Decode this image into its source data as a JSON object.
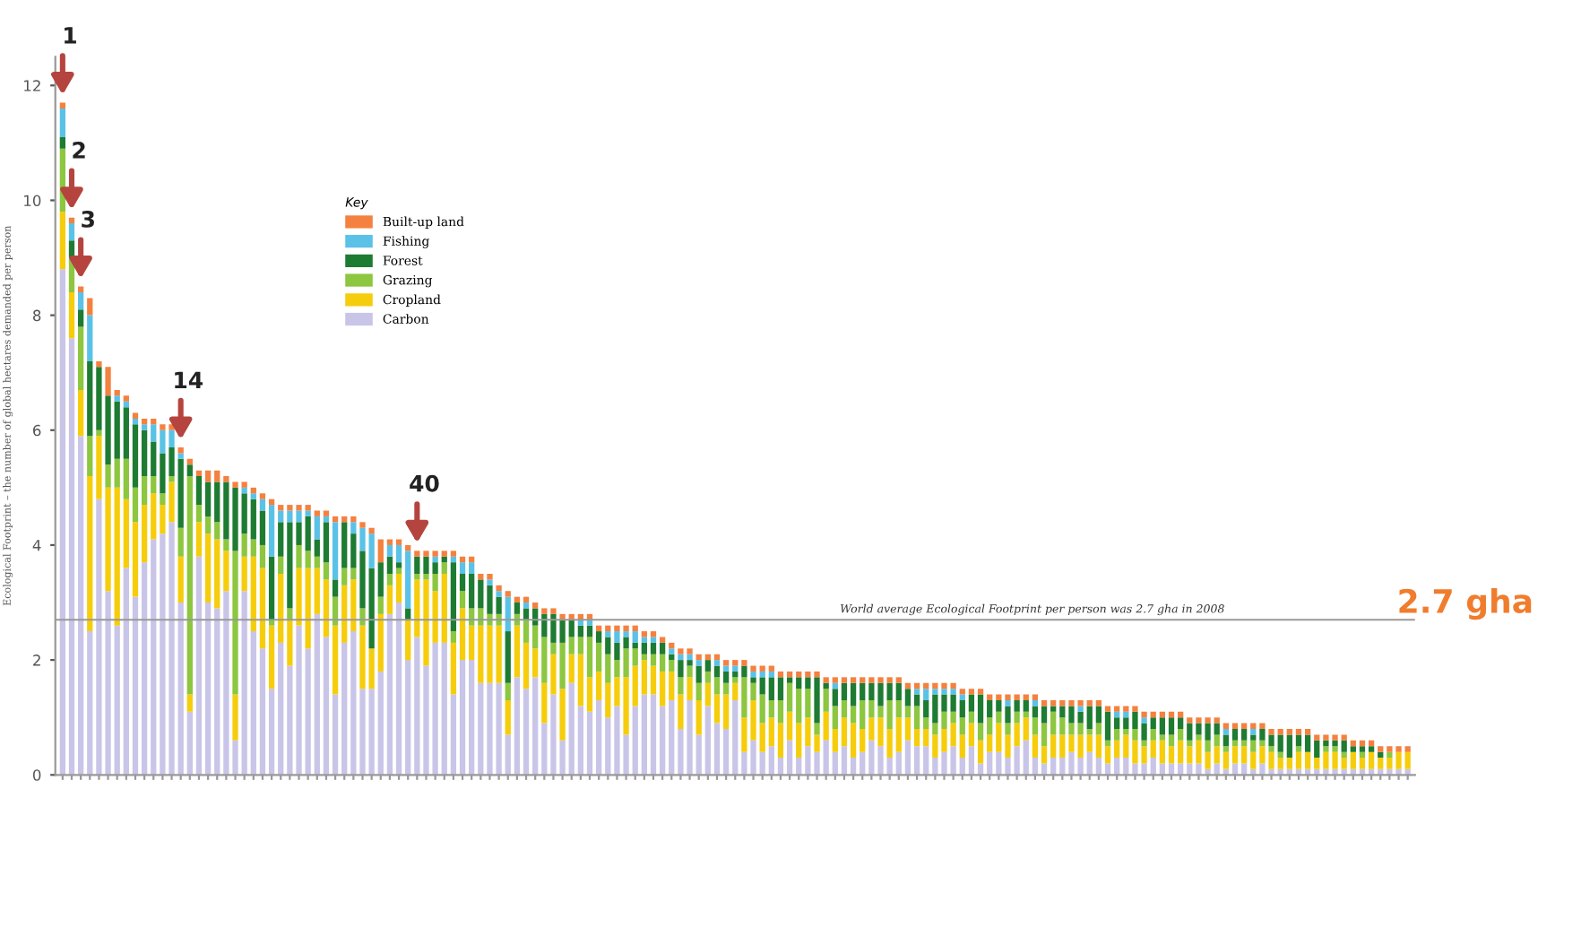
{
  "chart_data": {
    "type": "bar",
    "stacked": true,
    "ylabel": "Ecological Footprint – the number of global hectares demanded per person",
    "legend_title": "Key",
    "legend": "top left",
    "grid": false,
    "ylim": [
      0,
      12.5
    ],
    "yticks": [
      0,
      2,
      4,
      6,
      8,
      10,
      12
    ],
    "categories": [
      null,
      null,
      null,
      null,
      null,
      null,
      null,
      null,
      null,
      null,
      null,
      null,
      null,
      null,
      null,
      null,
      null,
      null,
      null,
      null,
      null,
      null,
      null,
      null,
      null,
      null,
      null,
      null,
      null,
      null,
      null,
      null,
      null,
      null,
      null,
      null,
      null,
      null,
      null,
      null,
      null,
      null,
      null,
      null,
      null,
      null,
      null,
      null,
      null,
      null,
      null,
      null,
      null,
      null,
      null,
      null,
      null,
      null,
      null,
      null,
      null,
      null,
      null,
      null,
      null,
      null,
      null,
      null,
      null,
      null,
      null,
      null,
      null,
      null,
      null,
      null,
      null,
      null,
      null,
      null,
      null,
      null,
      null,
      null,
      null,
      null,
      null,
      null,
      null,
      null,
      null,
      null,
      null,
      null,
      null,
      null,
      null,
      null,
      null,
      null,
      null,
      null,
      null,
      null,
      null,
      null,
      null,
      null,
      null,
      null,
      null,
      null,
      null,
      null,
      null,
      null,
      null,
      null,
      null,
      null,
      null,
      null,
      null,
      null,
      null,
      null,
      null,
      null,
      null,
      null,
      null,
      null,
      null,
      null,
      null,
      null,
      null,
      null,
      null,
      null,
      null,
      null,
      null,
      null,
      null,
      null,
      null,
      null,
      null
    ],
    "series": [
      {
        "name": "Carbon",
        "color": "#c9c5e8",
        "values": [
          8.8,
          7.6,
          5.9,
          2.5,
          4.8,
          3.2,
          2.6,
          3.6,
          3.1,
          3.7,
          4.1,
          4.2,
          4.4,
          3.0,
          1.1,
          3.8,
          3.0,
          2.9,
          3.2,
          0.6,
          3.2,
          2.5,
          2.2,
          1.5,
          2.3,
          1.9,
          2.6,
          2.2,
          2.8,
          2.4,
          1.4,
          2.3,
          2.5,
          1.5,
          1.5,
          1.8,
          2.8,
          3.0,
          2.0,
          2.4,
          1.9,
          2.3,
          2.3,
          1.4,
          2.0,
          2.0,
          1.6,
          1.6,
          1.6,
          0.7,
          1.7,
          1.5,
          1.7,
          0.9,
          1.4,
          0.6,
          1.6,
          1.2,
          1.1,
          1.3,
          1.0,
          1.2,
          0.7,
          1.2,
          1.4,
          1.4,
          1.2,
          1.3,
          0.8,
          1.3,
          0.7,
          1.2,
          0.9,
          0.8,
          1.3,
          0.4,
          0.6,
          0.4,
          0.5,
          0.3,
          0.6,
          0.3,
          0.5,
          0.4,
          0.6,
          0.4,
          0.5,
          0.3,
          0.4,
          0.6,
          0.5,
          0.3,
          0.4,
          0.6,
          0.5,
          0.5,
          0.3,
          0.4,
          0.5,
          0.3,
          0.5,
          0.2,
          0.4,
          0.4,
          0.3,
          0.5,
          0.6,
          0.3,
          0.2,
          0.3,
          0.3,
          0.4,
          0.3,
          0.4,
          0.3,
          0.2,
          0.3,
          0.3,
          0.2,
          0.2,
          0.3,
          0.2,
          0.2,
          0.2,
          0.2,
          0.2,
          0.1,
          0.2,
          0.1,
          0.2,
          0.2,
          0.1,
          0.2,
          0.1,
          0.1,
          0.1,
          0.1,
          0.1,
          0.1,
          0.1,
          0.1,
          0.1,
          0.1,
          0.1,
          0.1,
          0.1,
          0.1,
          0.1,
          0.1
        ]
      },
      {
        "name": "Cropland",
        "color": "#f6cd0c",
        "values": [
          1.0,
          0.8,
          0.8,
          2.7,
          1.1,
          1.8,
          2.4,
          1.2,
          1.3,
          1.0,
          0.8,
          0.5,
          0.7,
          0.8,
          0.3,
          0.6,
          1.2,
          1.2,
          0.7,
          0.8,
          0.6,
          1.3,
          1.4,
          1.1,
          1.2,
          0.8,
          1.0,
          1.4,
          0.8,
          1.0,
          1.2,
          1.0,
          0.9,
          1.1,
          0.7,
          1.0,
          0.5,
          0.5,
          0.7,
          1.0,
          1.5,
          0.9,
          1.2,
          0.9,
          0.9,
          0.6,
          1.0,
          1.0,
          1.0,
          0.6,
          0.9,
          0.8,
          0.5,
          0.7,
          0.7,
          0.9,
          0.5,
          0.9,
          0.6,
          0.5,
          0.6,
          0.5,
          1.0,
          0.7,
          0.6,
          0.5,
          0.6,
          0.5,
          0.6,
          0.4,
          0.6,
          0.4,
          0.5,
          0.6,
          0.3,
          0.6,
          0.7,
          0.5,
          0.5,
          0.6,
          0.5,
          0.6,
          0.5,
          0.3,
          0.5,
          0.4,
          0.5,
          0.6,
          0.4,
          0.4,
          0.5,
          0.5,
          0.6,
          0.4,
          0.3,
          0.3,
          0.4,
          0.4,
          0.4,
          0.4,
          0.4,
          0.4,
          0.3,
          0.5,
          0.4,
          0.4,
          0.4,
          0.4,
          0.3,
          0.4,
          0.4,
          0.3,
          0.4,
          0.3,
          0.4,
          0.3,
          0.3,
          0.4,
          0.4,
          0.3,
          0.3,
          0.4,
          0.3,
          0.4,
          0.3,
          0.4,
          0.3,
          0.3,
          0.3,
          0.3,
          0.3,
          0.3,
          0.3,
          0.3,
          0.2,
          0.2,
          0.3,
          0.3,
          0.2,
          0.3,
          0.3,
          0.2,
          0.3,
          0.2,
          0.3,
          0.2,
          0.2,
          0.3,
          0.3
        ]
      },
      {
        "name": "Grazing",
        "color": "#8dc63f",
        "values": [
          1.1,
          0.6,
          1.1,
          0.7,
          0.1,
          0.4,
          0.5,
          0.7,
          0.6,
          0.5,
          0.3,
          0.2,
          0.1,
          0.5,
          3.8,
          0.3,
          0.3,
          0.3,
          0.2,
          2.5,
          0.4,
          0.3,
          0.4,
          0.1,
          0.3,
          0.2,
          0.4,
          0.3,
          0.2,
          0.3,
          0.5,
          0.3,
          0.2,
          0.3,
          0.0,
          0.3,
          0.2,
          0.1,
          0.0,
          0.1,
          0.1,
          0.3,
          0.2,
          0.2,
          0.3,
          0.3,
          0.3,
          0.2,
          0.2,
          0.3,
          0.2,
          0.4,
          0.4,
          0.8,
          0.2,
          0.8,
          0.3,
          0.3,
          0.7,
          0.5,
          0.5,
          0.3,
          0.5,
          0.3,
          0.1,
          0.2,
          0.3,
          0.2,
          0.3,
          0.2,
          0.3,
          0.2,
          0.3,
          0.2,
          0.1,
          0.7,
          0.3,
          0.5,
          0.3,
          0.4,
          0.5,
          0.6,
          0.5,
          0.2,
          0.4,
          0.4,
          0.3,
          0.3,
          0.5,
          0.3,
          0.2,
          0.5,
          0.3,
          0.2,
          0.4,
          0.2,
          0.2,
          0.3,
          0.2,
          0.3,
          0.2,
          0.3,
          0.3,
          0.2,
          0.2,
          0.2,
          0.1,
          0.3,
          0.4,
          0.4,
          0.3,
          0.2,
          0.2,
          0.1,
          0.2,
          0.1,
          0.2,
          0.1,
          0.2,
          0.1,
          0.2,
          0.1,
          0.2,
          0.2,
          0.1,
          0.1,
          0.2,
          0.2,
          0.1,
          0.1,
          0.1,
          0.2,
          0.1,
          0.1,
          0.1,
          0.0,
          0.1,
          0.0,
          0.0,
          0.1,
          0.1,
          0.1,
          0.0,
          0.1,
          0.0,
          0.0,
          0.1,
          0.0,
          0.0
        ]
      },
      {
        "name": "Forest",
        "color": "#1e7b32",
        "values": [
          0.2,
          0.3,
          0.3,
          1.3,
          1.1,
          1.2,
          1.0,
          0.9,
          1.1,
          0.8,
          0.6,
          0.7,
          0.5,
          1.2,
          0.2,
          0.5,
          0.6,
          0.7,
          1.0,
          1.1,
          0.7,
          0.7,
          0.6,
          1.1,
          0.6,
          1.5,
          0.4,
          0.6,
          0.3,
          0.7,
          0.3,
          0.8,
          0.6,
          1.0,
          1.4,
          0.6,
          0.3,
          0.1,
          0.2,
          0.3,
          0.3,
          0.2,
          0.1,
          1.2,
          0.3,
          0.6,
          0.5,
          0.5,
          0.3,
          0.9,
          0.2,
          0.2,
          0.3,
          0.4,
          0.5,
          0.4,
          0.3,
          0.2,
          0.2,
          0.2,
          0.3,
          0.3,
          0.2,
          0.1,
          0.2,
          0.2,
          0.2,
          0.1,
          0.3,
          0.1,
          0.3,
          0.2,
          0.2,
          0.2,
          0.1,
          0.2,
          0.1,
          0.3,
          0.4,
          0.4,
          0.1,
          0.2,
          0.2,
          0.8,
          0.1,
          0.3,
          0.3,
          0.4,
          0.3,
          0.3,
          0.4,
          0.3,
          0.3,
          0.3,
          0.2,
          0.3,
          0.5,
          0.3,
          0.3,
          0.3,
          0.3,
          0.5,
          0.3,
          0.2,
          0.3,
          0.2,
          0.2,
          0.2,
          0.3,
          0.1,
          0.2,
          0.3,
          0.2,
          0.4,
          0.3,
          0.5,
          0.2,
          0.2,
          0.3,
          0.3,
          0.2,
          0.3,
          0.3,
          0.2,
          0.3,
          0.2,
          0.3,
          0.2,
          0.2,
          0.2,
          0.2,
          0.1,
          0.2,
          0.2,
          0.3,
          0.4,
          0.2,
          0.3,
          0.3,
          0.1,
          0.1,
          0.2,
          0.1,
          0.1,
          0.1,
          0.1,
          0.0,
          0.0,
          0.0
        ]
      },
      {
        "name": "Fishing",
        "color": "#5bc2e7",
        "values": [
          0.5,
          0.3,
          0.3,
          0.8,
          0.0,
          0.0,
          0.1,
          0.1,
          0.1,
          0.1,
          0.3,
          0.4,
          0.3,
          0.1,
          0.0,
          0.0,
          0.0,
          0.0,
          0.0,
          0.0,
          0.1,
          0.1,
          0.2,
          0.9,
          0.2,
          0.2,
          0.2,
          0.1,
          0.4,
          0.1,
          1.0,
          0.0,
          0.2,
          0.4,
          0.6,
          0.0,
          0.2,
          0.3,
          1.0,
          0.0,
          0.0,
          0.1,
          0.0,
          0.1,
          0.2,
          0.2,
          0.0,
          0.1,
          0.1,
          0.6,
          0.0,
          0.1,
          0.0,
          0.0,
          0.0,
          0.0,
          0.0,
          0.1,
          0.1,
          0.0,
          0.1,
          0.2,
          0.1,
          0.2,
          0.1,
          0.1,
          0.0,
          0.1,
          0.1,
          0.1,
          0.1,
          0.0,
          0.1,
          0.1,
          0.1,
          0.0,
          0.1,
          0.1,
          0.1,
          0.0,
          0.0,
          0.0,
          0.0,
          0.0,
          0.0,
          0.1,
          0.0,
          0.0,
          0.0,
          0.0,
          0.0,
          0.0,
          0.0,
          0.0,
          0.1,
          0.2,
          0.1,
          0.1,
          0.1,
          0.1,
          0.0,
          0.0,
          0.0,
          0.0,
          0.1,
          0.0,
          0.0,
          0.1,
          0.0,
          0.0,
          0.0,
          0.0,
          0.1,
          0.0,
          0.0,
          0.0,
          0.1,
          0.1,
          0.0,
          0.1,
          0.0,
          0.0,
          0.0,
          0.0,
          0.0,
          0.0,
          0.0,
          0.0,
          0.1,
          0.0,
          0.0,
          0.1,
          0.0,
          0.0,
          0.0,
          0.0,
          0.0,
          0.0,
          0.0,
          0.0,
          0.0,
          0.0,
          0.0,
          0.0,
          0.0,
          0.0,
          0.0,
          0.0,
          0.0
        ]
      },
      {
        "name": "Built-up land",
        "color": "#f4813f",
        "values": [
          0.1,
          0.1,
          0.1,
          0.3,
          0.1,
          0.5,
          0.1,
          0.1,
          0.1,
          0.1,
          0.1,
          0.1,
          0.1,
          0.1,
          0.1,
          0.1,
          0.2,
          0.2,
          0.1,
          0.1,
          0.1,
          0.1,
          0.1,
          0.1,
          0.1,
          0.1,
          0.1,
          0.1,
          0.1,
          0.1,
          0.1,
          0.1,
          0.1,
          0.1,
          0.1,
          0.4,
          0.1,
          0.1,
          0.1,
          0.1,
          0.1,
          0.1,
          0.1,
          0.1,
          0.1,
          0.1,
          0.1,
          0.1,
          0.1,
          0.1,
          0.1,
          0.1,
          0.1,
          0.1,
          0.1,
          0.1,
          0.1,
          0.1,
          0.1,
          0.1,
          0.1,
          0.1,
          0.1,
          0.1,
          0.1,
          0.1,
          0.1,
          0.1,
          0.1,
          0.1,
          0.1,
          0.1,
          0.1,
          0.1,
          0.1,
          0.1,
          0.1,
          0.1,
          0.1,
          0.1,
          0.1,
          0.1,
          0.1,
          0.1,
          0.1,
          0.1,
          0.1,
          0.1,
          0.1,
          0.1,
          0.1,
          0.1,
          0.1,
          0.1,
          0.1,
          0.1,
          0.1,
          0.1,
          0.1,
          0.1,
          0.1,
          0.1,
          0.1,
          0.1,
          0.1,
          0.1,
          0.1,
          0.1,
          0.1,
          0.1,
          0.1,
          0.1,
          0.1,
          0.1,
          0.1,
          0.1,
          0.1,
          0.1,
          0.1,
          0.1,
          0.1,
          0.1,
          0.1,
          0.1,
          0.1,
          0.1,
          0.1,
          0.1,
          0.1,
          0.1,
          0.1,
          0.1,
          0.1,
          0.1,
          0.1,
          0.1,
          0.1,
          0.1,
          0.1,
          0.1,
          0.1,
          0.1,
          0.1,
          0.1,
          0.1,
          0.1,
          0.1,
          0.1,
          0.1
        ]
      }
    ],
    "ref_lines": [
      {
        "axis": "y",
        "value": 2.7,
        "label": "World average Ecological Footprint per person was 2.7 gha in 2008",
        "color": "#999999"
      }
    ],
    "annotations": [
      {
        "text": "1",
        "y": 11.7
      },
      {
        "text": "2",
        "y": 9.7
      },
      {
        "text": "3",
        "y": 8.5
      },
      {
        "text": "14",
        "y": 5.7
      },
      {
        "text": "40",
        "y": 3.9
      },
      "2.7 gha"
    ]
  }
}
